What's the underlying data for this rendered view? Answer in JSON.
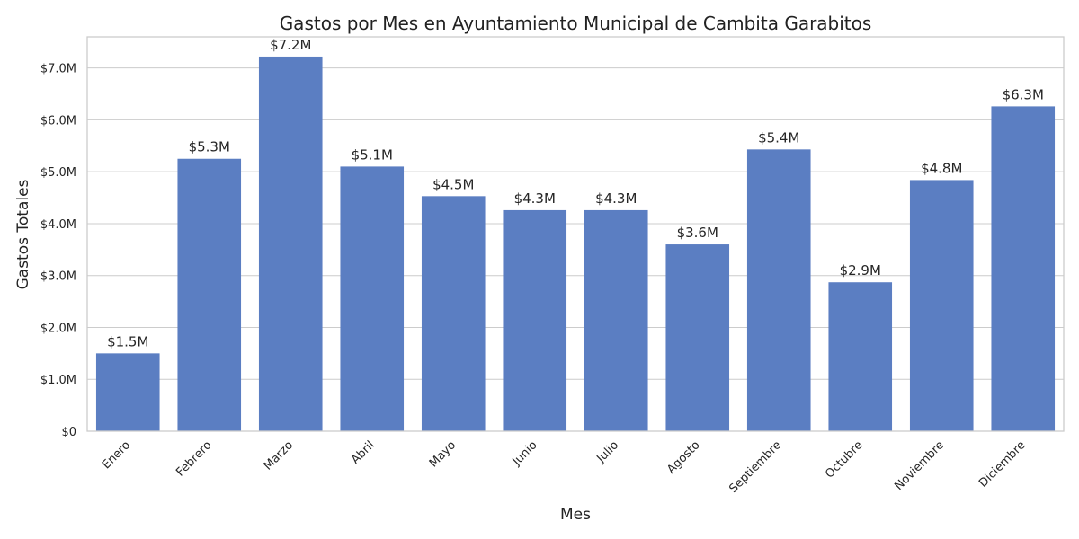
{
  "chart_data": {
    "type": "bar",
    "title": "Gastos por Mes en Ayuntamiento Municipal de Cambita Garabitos",
    "xlabel": "Mes",
    "ylabel": "Gastos Totales",
    "categories": [
      "Enero",
      "Febrero",
      "Marzo",
      "Abril",
      "Mayo",
      "Junio",
      "Julio",
      "Agosto",
      "Septiembre",
      "Octubre",
      "Noviembre",
      "Diciembre"
    ],
    "values": [
      1.5,
      5.25,
      7.22,
      5.1,
      4.53,
      4.26,
      4.26,
      3.6,
      5.43,
      2.87,
      4.84,
      6.26
    ],
    "data_labels": [
      "$1.5M",
      "$5.3M",
      "$7.2M",
      "$5.1M",
      "$4.5M",
      "$4.3M",
      "$4.3M",
      "$3.6M",
      "$5.4M",
      "$2.9M",
      "$4.8M",
      "$6.3M"
    ],
    "y_unit": "millions of dollars",
    "ylim": [
      0,
      7.6
    ],
    "y_ticks": [
      0,
      1,
      2,
      3,
      4,
      5,
      6,
      7
    ],
    "y_tick_labels": [
      "$0",
      "$1.0M",
      "$2.0M",
      "$3.0M",
      "$4.0M",
      "$5.0M",
      "$6.0M",
      "$7.0M"
    ],
    "grid": true,
    "bar_color": "#5b7ec2",
    "x_tick_rotation_deg": 45
  }
}
